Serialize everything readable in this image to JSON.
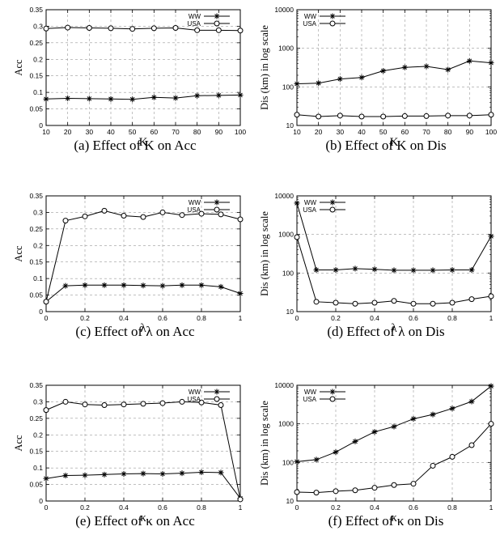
{
  "chart_data": [
    {
      "type": "line",
      "caption": "(a) Effect of K on Acc",
      "xlabel": "K",
      "ylabel": "Acc",
      "x": [
        10,
        20,
        30,
        40,
        50,
        60,
        70,
        80,
        90,
        100
      ],
      "xlim": [
        10,
        100
      ],
      "xticks": [
        "10",
        "20",
        "30",
        "40",
        "50",
        "60",
        "70",
        "80",
        "90",
        "100"
      ],
      "ylim": [
        0,
        0.35
      ],
      "log": false,
      "yticks": [
        "0",
        "0.05",
        "0.1",
        "0.15",
        "0.2",
        "0.25",
        "0.3",
        "0.35"
      ],
      "grid": true,
      "legend": "top-right",
      "series": [
        {
          "name": "WW",
          "marker": "star",
          "values": [
            0.08,
            0.082,
            0.081,
            0.08,
            0.079,
            0.085,
            0.083,
            0.09,
            0.091,
            0.092
          ]
        },
        {
          "name": "USA",
          "marker": "circle",
          "values": [
            0.293,
            0.296,
            0.295,
            0.294,
            0.292,
            0.294,
            0.295,
            0.288,
            0.288,
            0.287
          ]
        }
      ]
    },
    {
      "type": "line",
      "caption": "(b) Effect of K on Dis",
      "xlabel": "K",
      "ylabel": "Dis (km) in log scale",
      "x": [
        10,
        20,
        30,
        40,
        50,
        60,
        70,
        80,
        90,
        100
      ],
      "xlim": [
        10,
        100
      ],
      "xticks": [
        "10",
        "20",
        "30",
        "40",
        "50",
        "60",
        "70",
        "80",
        "90",
        "100"
      ],
      "ylim": [
        10,
        10000
      ],
      "log": true,
      "yticks": [
        "10",
        "100",
        "1000",
        "10000"
      ],
      "grid": true,
      "legend": "top-left",
      "series": [
        {
          "name": "WW",
          "marker": "star",
          "values": [
            120,
            125,
            160,
            175,
            260,
            320,
            340,
            280,
            470,
            420
          ]
        },
        {
          "name": "USA",
          "marker": "circle",
          "values": [
            19,
            17,
            18,
            17,
            17,
            17.5,
            17.5,
            18,
            18,
            19
          ]
        }
      ]
    },
    {
      "type": "line",
      "caption": "(c) Effect of λ on Acc",
      "xlabel": "λ",
      "ylabel": "Acc",
      "x": [
        0,
        0.1,
        0.2,
        0.3,
        0.4,
        0.5,
        0.6,
        0.7,
        0.8,
        0.9,
        1
      ],
      "xlim": [
        0,
        1
      ],
      "xticks": [
        "0",
        "0.2",
        "0.4",
        "0.6",
        "0.8",
        "1"
      ],
      "ylim": [
        0,
        0.35
      ],
      "log": false,
      "yticks": [
        "0",
        "0.05",
        "0.1",
        "0.15",
        "0.2",
        "0.25",
        "0.3",
        "0.35"
      ],
      "grid": true,
      "legend": "top-right",
      "series": [
        {
          "name": "WW",
          "marker": "star",
          "values": [
            0.03,
            0.078,
            0.08,
            0.08,
            0.08,
            0.079,
            0.078,
            0.08,
            0.08,
            0.075,
            0.055
          ]
        },
        {
          "name": "USA",
          "marker": "circle",
          "values": [
            0.03,
            0.275,
            0.288,
            0.305,
            0.29,
            0.286,
            0.3,
            0.292,
            0.296,
            0.294,
            0.279
          ]
        }
      ]
    },
    {
      "type": "line",
      "caption": "(d) Effect of λ on Dis",
      "xlabel": "λ",
      "ylabel": "Dis (km) in log scale",
      "x": [
        0,
        0.1,
        0.2,
        0.3,
        0.4,
        0.5,
        0.6,
        0.7,
        0.8,
        0.9,
        1
      ],
      "xlim": [
        0,
        1
      ],
      "xticks": [
        "0",
        "0.2",
        "0.4",
        "0.6",
        "0.8",
        "1"
      ],
      "ylim": [
        10,
        10000
      ],
      "log": true,
      "yticks": [
        "10",
        "100",
        "1000",
        "10000"
      ],
      "grid": true,
      "legend": "top-left",
      "series": [
        {
          "name": "WW",
          "marker": "star",
          "values": [
            6500,
            120,
            120,
            130,
            125,
            118,
            118,
            118,
            120,
            120,
            900
          ]
        },
        {
          "name": "USA",
          "marker": "circle",
          "values": [
            850,
            18,
            17,
            16,
            17,
            19,
            16,
            16,
            17,
            21,
            25
          ]
        }
      ]
    },
    {
      "type": "line",
      "caption": "(e) Effect of κ on Acc",
      "xlabel": "κ",
      "ylabel": "Acc",
      "x": [
        0,
        0.1,
        0.2,
        0.3,
        0.4,
        0.5,
        0.6,
        0.7,
        0.8,
        0.9,
        1
      ],
      "xlim": [
        0,
        1
      ],
      "xticks": [
        "0",
        "0.2",
        "0.4",
        "0.6",
        "0.8",
        "1"
      ],
      "ylim": [
        0,
        0.35
      ],
      "log": false,
      "yticks": [
        "0",
        "0.05",
        "0.1",
        "0.15",
        "0.2",
        "0.25",
        "0.3",
        "0.35"
      ],
      "grid": true,
      "legend": "top-right",
      "series": [
        {
          "name": "WW",
          "marker": "star",
          "values": [
            0.068,
            0.077,
            0.078,
            0.08,
            0.082,
            0.083,
            0.082,
            0.084,
            0.087,
            0.086,
            0.008
          ]
        },
        {
          "name": "USA",
          "marker": "circle",
          "values": [
            0.275,
            0.3,
            0.292,
            0.29,
            0.292,
            0.294,
            0.296,
            0.3,
            0.298,
            0.29,
            0.005
          ]
        }
      ]
    },
    {
      "type": "line",
      "caption": "(f) Effect of κ on Dis",
      "xlabel": "κ",
      "ylabel": "Dis (km) in log scale",
      "x": [
        0,
        0.1,
        0.2,
        0.3,
        0.4,
        0.5,
        0.6,
        0.7,
        0.8,
        0.9,
        1
      ],
      "xlim": [
        0,
        1
      ],
      "xticks": [
        "0",
        "0.2",
        "0.4",
        "0.6",
        "0.8",
        "1"
      ],
      "ylim": [
        10,
        10000
      ],
      "log": true,
      "yticks": [
        "10",
        "100",
        "1000",
        "10000"
      ],
      "grid": true,
      "legend": "top-left",
      "series": [
        {
          "name": "WW",
          "marker": "star",
          "values": [
            105,
            118,
            185,
            350,
            620,
            850,
            1350,
            1750,
            2500,
            3800,
            9500
          ]
        },
        {
          "name": "USA",
          "marker": "circle",
          "values": [
            17,
            16.5,
            18,
            19,
            22,
            26,
            28,
            82,
            140,
            280,
            1000
          ]
        }
      ]
    }
  ]
}
